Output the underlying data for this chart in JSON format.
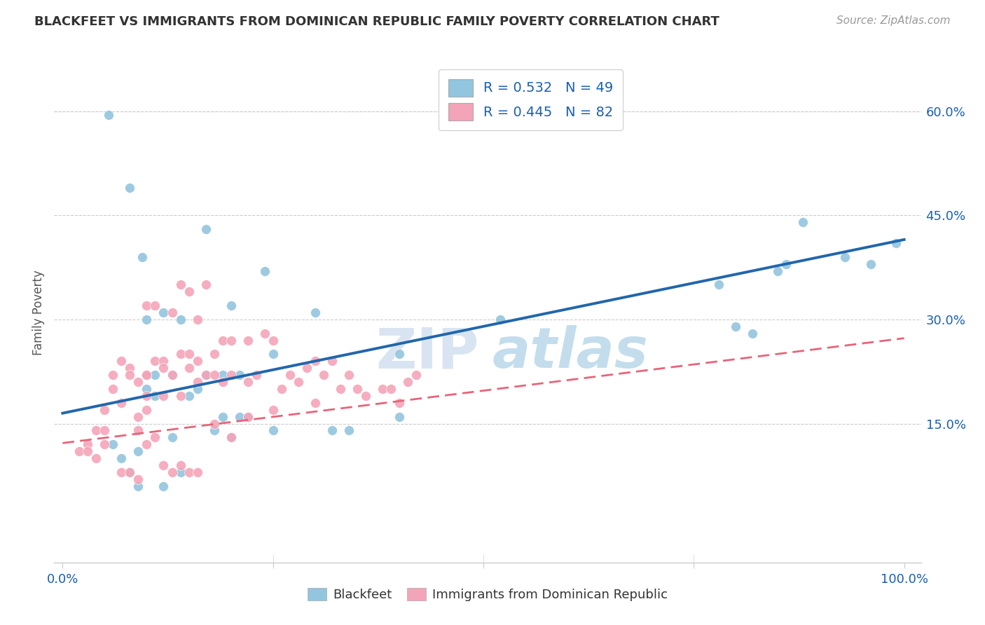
{
  "title": "BLACKFEET VS IMMIGRANTS FROM DOMINICAN REPUBLIC FAMILY POVERTY CORRELATION CHART",
  "source": "Source: ZipAtlas.com",
  "ylabel": "Family Poverty",
  "ytick_values": [
    0.15,
    0.3,
    0.45,
    0.6
  ],
  "ytick_labels": [
    "15.0%",
    "30.0%",
    "45.0%",
    "60.0%"
  ],
  "xtick_values": [
    0.0,
    0.25,
    0.5,
    0.75,
    1.0
  ],
  "xlim": [
    -0.01,
    1.02
  ],
  "ylim": [
    -0.05,
    0.67
  ],
  "blue_color": "#92c5de",
  "pink_color": "#f4a4b8",
  "blue_line_color": "#2166ac",
  "pink_line_color": "#e8647a",
  "legend_label_color": "#1a5fb4",
  "watermark_zip": "ZIP",
  "watermark_atlas": "atlas",
  "blue_scatter_x": [
    0.055,
    0.08,
    0.095,
    0.1,
    0.1,
    0.11,
    0.12,
    0.13,
    0.14,
    0.15,
    0.16,
    0.17,
    0.18,
    0.19,
    0.19,
    0.2,
    0.21,
    0.21,
    0.22,
    0.24,
    0.25,
    0.25,
    0.3,
    0.32,
    0.34,
    0.4,
    0.4,
    0.52,
    0.78,
    0.8,
    0.82,
    0.85,
    0.86,
    0.88,
    0.93,
    0.96,
    0.99,
    0.06,
    0.07,
    0.08,
    0.09,
    0.09,
    0.1,
    0.11,
    0.12,
    0.13,
    0.14,
    0.17,
    0.2
  ],
  "blue_scatter_y": [
    0.595,
    0.49,
    0.39,
    0.22,
    0.3,
    0.22,
    0.31,
    0.22,
    0.3,
    0.19,
    0.2,
    0.22,
    0.14,
    0.22,
    0.16,
    0.13,
    0.22,
    0.16,
    0.16,
    0.37,
    0.25,
    0.14,
    0.31,
    0.14,
    0.14,
    0.25,
    0.16,
    0.3,
    0.35,
    0.29,
    0.28,
    0.37,
    0.38,
    0.44,
    0.39,
    0.38,
    0.41,
    0.12,
    0.1,
    0.08,
    0.11,
    0.06,
    0.2,
    0.19,
    0.06,
    0.13,
    0.08,
    0.43,
    0.32
  ],
  "pink_scatter_x": [
    0.02,
    0.03,
    0.03,
    0.04,
    0.04,
    0.05,
    0.05,
    0.05,
    0.06,
    0.06,
    0.07,
    0.07,
    0.08,
    0.08,
    0.09,
    0.09,
    0.09,
    0.1,
    0.1,
    0.1,
    0.1,
    0.11,
    0.11,
    0.12,
    0.12,
    0.12,
    0.13,
    0.13,
    0.14,
    0.14,
    0.14,
    0.15,
    0.15,
    0.15,
    0.16,
    0.16,
    0.16,
    0.17,
    0.17,
    0.18,
    0.18,
    0.19,
    0.19,
    0.2,
    0.2,
    0.22,
    0.22,
    0.23,
    0.24,
    0.25,
    0.26,
    0.27,
    0.28,
    0.29,
    0.3,
    0.3,
    0.31,
    0.32,
    0.33,
    0.34,
    0.35,
    0.36,
    0.38,
    0.39,
    0.4,
    0.41,
    0.42,
    0.07,
    0.08,
    0.09,
    0.1,
    0.11,
    0.12,
    0.13,
    0.14,
    0.15,
    0.16,
    0.18,
    0.2,
    0.22,
    0.25,
    0.1
  ],
  "pink_scatter_y": [
    0.11,
    0.12,
    0.11,
    0.1,
    0.14,
    0.12,
    0.17,
    0.14,
    0.2,
    0.22,
    0.24,
    0.18,
    0.23,
    0.22,
    0.14,
    0.16,
    0.21,
    0.22,
    0.17,
    0.22,
    0.32,
    0.32,
    0.24,
    0.24,
    0.19,
    0.23,
    0.31,
    0.22,
    0.25,
    0.19,
    0.35,
    0.25,
    0.23,
    0.34,
    0.24,
    0.3,
    0.21,
    0.22,
    0.35,
    0.25,
    0.22,
    0.27,
    0.21,
    0.27,
    0.22,
    0.21,
    0.27,
    0.22,
    0.28,
    0.27,
    0.2,
    0.22,
    0.21,
    0.23,
    0.24,
    0.18,
    0.22,
    0.24,
    0.2,
    0.22,
    0.2,
    0.19,
    0.2,
    0.2,
    0.18,
    0.21,
    0.22,
    0.08,
    0.08,
    0.07,
    0.12,
    0.13,
    0.09,
    0.08,
    0.09,
    0.08,
    0.08,
    0.15,
    0.13,
    0.16,
    0.17,
    0.19
  ],
  "blue_line_y_start": 0.165,
  "blue_line_y_end": 0.415,
  "pink_line_y_start": 0.122,
  "pink_line_y_end": 0.273,
  "grid_color": "#cccccc",
  "tick_color": "#1a5fb4"
}
